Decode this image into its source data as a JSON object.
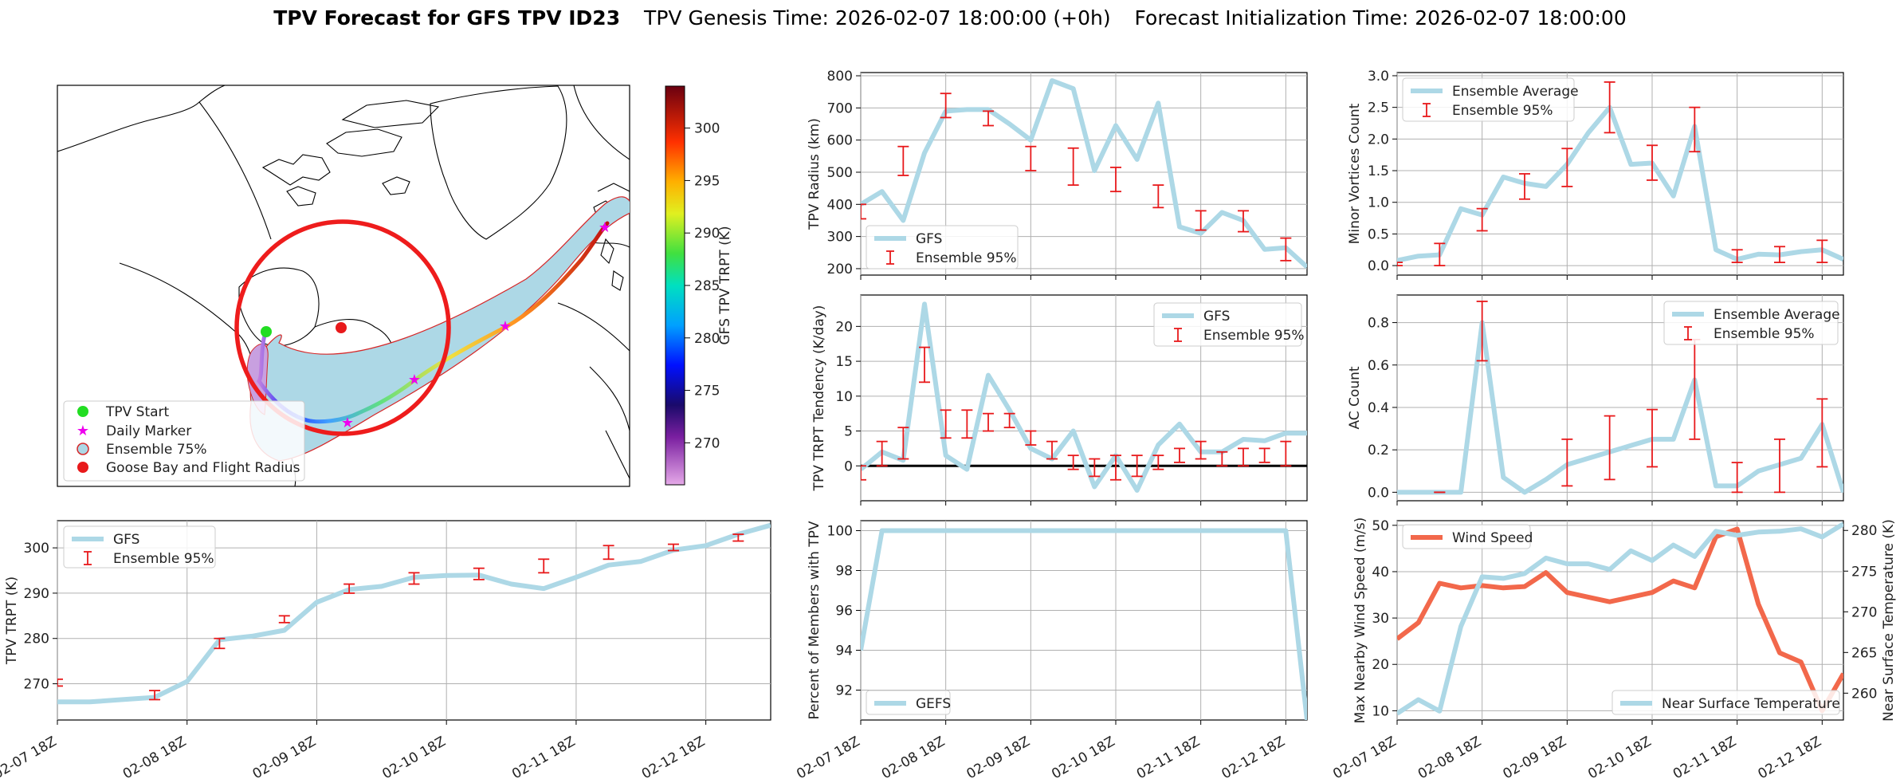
{
  "title": {
    "bold": "TPV Forecast for GFS TPV ID23",
    "genesis": "TPV Genesis Time: 2026-02-07 18:00:00 (+0h)",
    "init": "Forecast Initialization Time: 2026-02-07 18:00:00"
  },
  "colors": {
    "gfs": "#add8e6",
    "ens": "#e8191b",
    "wind": "#f2684b",
    "temp_axis": "#4169e1",
    "wind_axis": "#f2684b",
    "zero_line": "#000000",
    "grid": "#b0b0b0"
  },
  "x_ticks": [
    "02-07 18Z",
    "02-08 18Z",
    "02-09 18Z",
    "02-10 18Z",
    "02-11 18Z",
    "02-12 18Z"
  ],
  "map": {
    "legend": [
      "TPV Start",
      "Daily Marker",
      "Ensemble 75%",
      "Goose Bay and Flight Radius"
    ],
    "colorbar": {
      "label": "GFS TPV TRPT (K)",
      "ticks": [
        "270",
        "275",
        "280",
        "285",
        "290",
        "295",
        "300"
      ],
      "min": 266,
      "max": 304
    }
  },
  "chart_data": [
    {
      "id": "trpt",
      "type": "line",
      "title": "",
      "ylabel": "TPV TRPT (K)",
      "ylim": [
        262,
        306
      ],
      "yticks": [
        270,
        280,
        290,
        300
      ],
      "series": [
        {
          "name": "GFS",
          "values": [
            266,
            266,
            266.5,
            267,
            270.5,
            279.7,
            280.5,
            281.8,
            288,
            290.8,
            291.5,
            293.5,
            293.9,
            294,
            292,
            291,
            293.5,
            296.2,
            297,
            299.5,
            300.5,
            303,
            305
          ]
        }
      ],
      "errorbars": {
        "name": "Ensemble 95%",
        "x": [
          0,
          3,
          5,
          7,
          9,
          11,
          13,
          15,
          17,
          19,
          21
        ],
        "low": [
          269.5,
          266.5,
          277.8,
          283.5,
          290,
          292,
          293,
          294.5,
          297.5,
          299.4,
          301.5
        ],
        "high": [
          271,
          268.5,
          280,
          285,
          292,
          294.5,
          295.5,
          297.5,
          300.5,
          300.8,
          303
        ]
      }
    },
    {
      "id": "radius",
      "type": "line",
      "ylabel": "TPV Radius (km)",
      "ylim": [
        180,
        810
      ],
      "yticks": [
        200,
        300,
        400,
        500,
        600,
        700,
        800
      ],
      "series": [
        {
          "name": "GFS",
          "values": [
            400,
            440,
            350,
            560,
            690,
            695,
            695,
            650,
            600,
            785,
            760,
            505,
            645,
            540,
            715,
            330,
            310,
            375,
            350,
            260,
            265,
            205
          ]
        }
      ],
      "errorbars": {
        "name": "Ensemble 95%",
        "x": [
          0,
          2,
          4,
          6,
          8,
          10,
          12,
          14,
          16,
          18,
          20
        ],
        "low": [
          355,
          490,
          670,
          645,
          505,
          460,
          440,
          390,
          320,
          315,
          225
        ],
        "high": [
          400,
          580,
          745,
          690,
          580,
          575,
          515,
          460,
          380,
          380,
          295
        ]
      }
    },
    {
      "id": "tendency",
      "type": "line",
      "ylabel": "TPV TRPT Tendency (K/day)",
      "ylim": [
        -5,
        24.5
      ],
      "yticks": [
        0,
        5,
        10,
        15,
        20
      ],
      "zero_line": 0,
      "series": [
        {
          "name": "GFS",
          "values": [
            -0.5,
            2,
            0.8,
            23.2,
            1.5,
            -0.5,
            13,
            8,
            2.5,
            1,
            5,
            -3,
            1.5,
            -3.5,
            3,
            6,
            2,
            2,
            3.8,
            3.6,
            4.7,
            4.7
          ]
        }
      ],
      "errorbars": {
        "name": "Ensemble 95%",
        "x": [
          0,
          1,
          2,
          3,
          4,
          5,
          6,
          7,
          8,
          9,
          10,
          11,
          12,
          13,
          14,
          15,
          16,
          17,
          18,
          19,
          20
        ],
        "low": [
          -2,
          0,
          1,
          12,
          4,
          4,
          5,
          5.5,
          3,
          1,
          -0.5,
          -1.5,
          -2,
          -1.5,
          -0.5,
          0.5,
          1,
          0,
          0,
          0.5,
          0
        ],
        "high": [
          0,
          3.5,
          5.5,
          17,
          8,
          8,
          7.5,
          7.5,
          5,
          3.5,
          1.5,
          1,
          1.5,
          1.5,
          1.5,
          2.5,
          3.5,
          2,
          2.5,
          2.5,
          3.5
        ]
      }
    },
    {
      "id": "members",
      "type": "line",
      "ylabel": "Percent of Members with TPV",
      "ylim": [
        90.5,
        100.5
      ],
      "yticks": [
        92,
        94,
        96,
        98,
        100
      ],
      "series": [
        {
          "name": "GEFS",
          "values": [
            94,
            100,
            100,
            100,
            100,
            100,
            100,
            100,
            100,
            100,
            100,
            100,
            100,
            100,
            100,
            100,
            100,
            100,
            100,
            100,
            100,
            90.5
          ]
        }
      ]
    },
    {
      "id": "minor",
      "type": "line",
      "ylabel": "Minor Vortices Count",
      "ylim": [
        -0.15,
        3.05
      ],
      "yticks": [
        0.0,
        0.5,
        1.0,
        1.5,
        2.0,
        2.5,
        3.0
      ],
      "series": [
        {
          "name": "Ensemble Average",
          "values": [
            0.08,
            0.15,
            0.17,
            0.9,
            0.8,
            1.4,
            1.3,
            1.25,
            1.6,
            2.1,
            2.5,
            1.6,
            1.62,
            1.1,
            2.2,
            0.25,
            0.1,
            0.18,
            0.17,
            0.22,
            0.25,
            0.1
          ]
        }
      ],
      "errorbars": {
        "name": "Ensemble 95%",
        "x": [
          0,
          2,
          4,
          6,
          8,
          10,
          12,
          14,
          16,
          18,
          20
        ],
        "low": [
          0,
          0,
          0.55,
          1.05,
          1.25,
          2.1,
          1.35,
          1.8,
          0.05,
          0.05,
          0.05
        ],
        "high": [
          0.05,
          0.35,
          0.9,
          1.45,
          1.85,
          2.9,
          1.9,
          2.5,
          0.25,
          0.3,
          0.4
        ]
      }
    },
    {
      "id": "ac",
      "type": "line",
      "ylabel": "AC Count",
      "ylim": [
        -0.04,
        0.93
      ],
      "yticks": [
        0.0,
        0.2,
        0.4,
        0.6,
        0.8
      ],
      "series": [
        {
          "name": "Ensemble Average",
          "values": [
            0,
            0,
            0,
            0,
            0.8,
            0.07,
            0,
            0.06,
            0.13,
            0.16,
            0.19,
            0.22,
            0.25,
            0.25,
            0.53,
            0.03,
            0.03,
            0.1,
            0.13,
            0.16,
            0.32,
            0
          ]
        }
      ],
      "errorbars": {
        "name": "Ensemble 95%",
        "x": [
          2,
          4,
          8,
          10,
          12,
          14,
          16,
          18,
          20
        ],
        "low": [
          0,
          0.62,
          0.03,
          0.06,
          0.12,
          0.25,
          0,
          0,
          0.12
        ],
        "high": [
          0,
          0.9,
          0.25,
          0.36,
          0.39,
          0.72,
          0.14,
          0.25,
          0.44
        ]
      }
    },
    {
      "id": "wind",
      "type": "line",
      "ylabel": "Max Nearby Wind Speed (m/s)",
      "ylabel_right": "Near Surface Temperature (K)",
      "ylim": [
        8,
        51
      ],
      "yticks": [
        10,
        20,
        30,
        40,
        50
      ],
      "ylim_right": [
        256.7,
        281.2
      ],
      "yticks_right": [
        260,
        265,
        270,
        275,
        280
      ],
      "series": [
        {
          "name": "Wind Speed",
          "axis": "left",
          "values": [
            25.5,
            29,
            37.5,
            36.5,
            37,
            36.5,
            36.8,
            39.8,
            35.5,
            34.5,
            33.5,
            34.5,
            35.5,
            38,
            36.5,
            47.5,
            49.2,
            33,
            22.5,
            20.5,
            10,
            18
          ]
        },
        {
          "name": "Near Surface Temperature",
          "axis": "right",
          "values": [
            257.5,
            259.2,
            257.8,
            268.2,
            274.3,
            274.1,
            274.7,
            276.6,
            275.9,
            275.9,
            275.2,
            277.5,
            276.3,
            278.2,
            276.8,
            279.9,
            279.4,
            279.8,
            279.9,
            280.2,
            279.2,
            280.8
          ]
        }
      ]
    }
  ]
}
